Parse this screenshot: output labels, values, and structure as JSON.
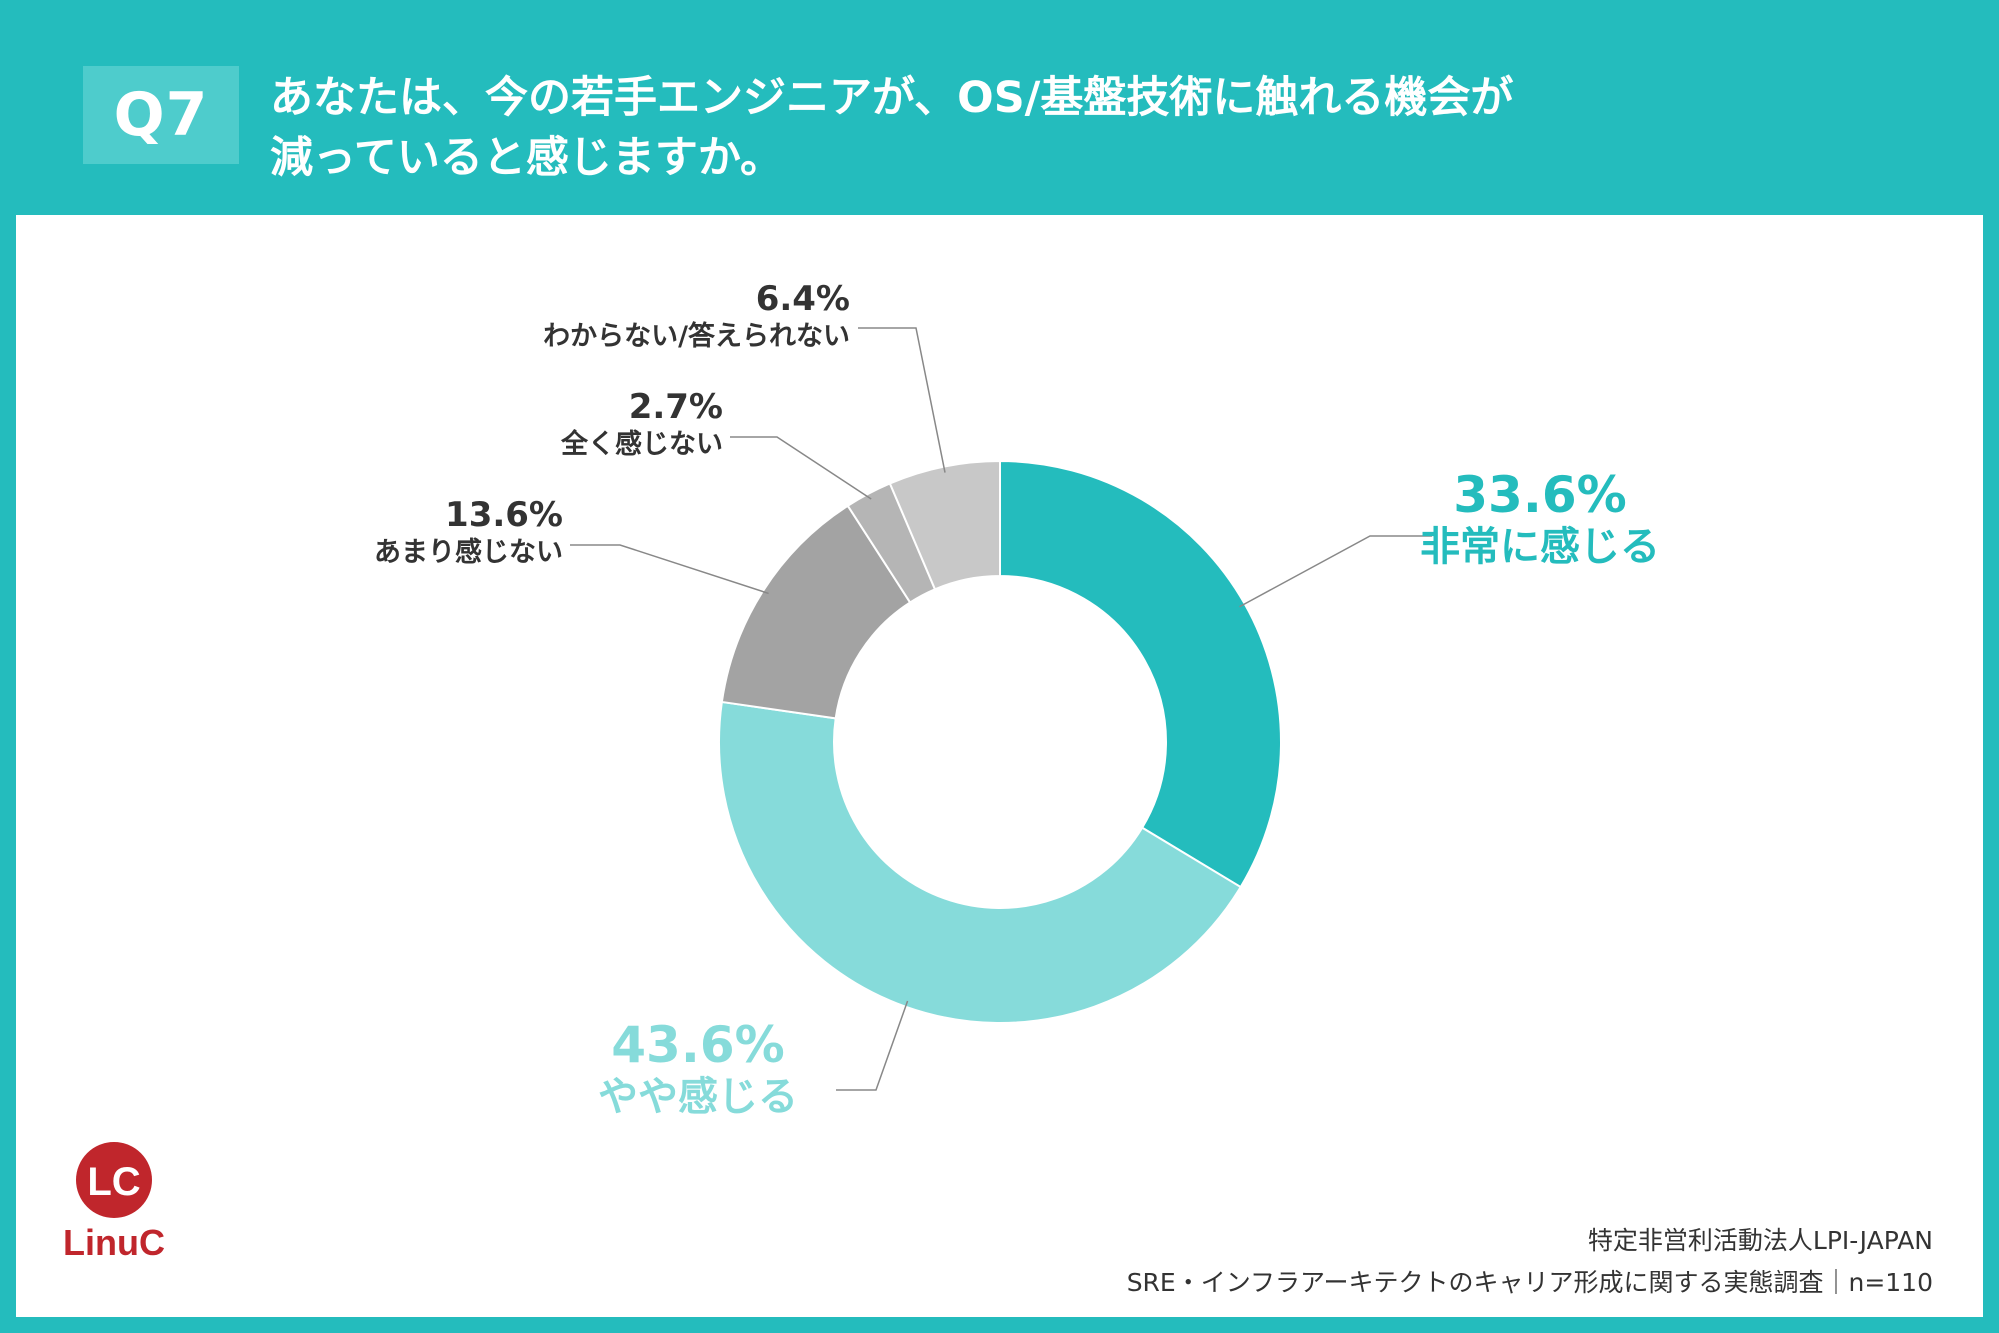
{
  "header": {
    "question_number": "Q7",
    "title_line1": "あなたは、今の若手エンジニアが、OS/基盤技術に触れる機会が",
    "title_line2": "減っていると感じますか。"
  },
  "colors": {
    "background": "#24bcbd",
    "question_box": "#4ecccc",
    "panel": "#ffffff"
  },
  "chart_data": {
    "type": "pie",
    "donut": true,
    "slices": [
      {
        "label": "非常に感じる",
        "value": 33.6,
        "value_text": "33.6%",
        "color": "#24bcbd",
        "label_color": "#24bcbd"
      },
      {
        "label": "やや感じる",
        "value": 43.6,
        "value_text": "43.6%",
        "color": "#86dbda",
        "label_color": "#86dbda"
      },
      {
        "label": "あまり感じない",
        "value": 13.6,
        "value_text": "13.6%",
        "color": "#a3a3a3",
        "label_color": "#333333"
      },
      {
        "label": "全く感じない",
        "value": 2.7,
        "value_text": "2.7%",
        "color": "#b5b5b5",
        "label_color": "#333333"
      },
      {
        "label": "わからない/答えられない",
        "value": 6.4,
        "value_text": "6.4%",
        "color": "#c8c8c8",
        "label_color": "#333333"
      }
    ]
  },
  "footer": {
    "source_line1": "特定非営利活動法人LPI-JAPAN",
    "source_line2": "SRE・インフラアーキテクトのキャリア形成に関する実態調査｜n=110"
  },
  "logo": {
    "mark_text": "LC",
    "name": "LinuC",
    "color": "#c0262c"
  }
}
